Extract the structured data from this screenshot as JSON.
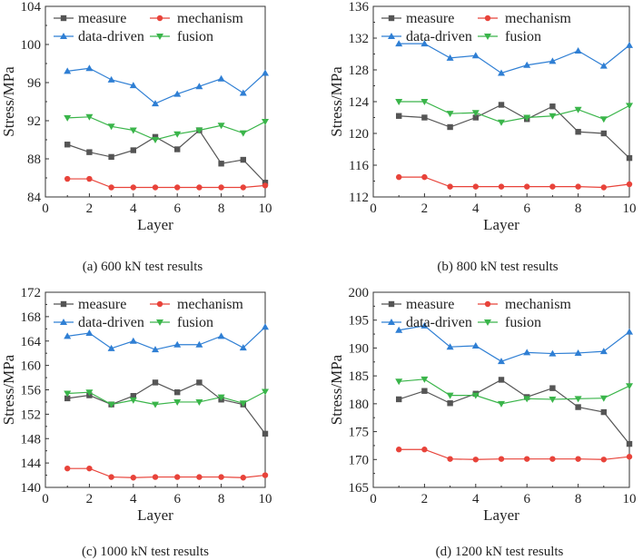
{
  "chart_data": [
    {
      "type": "line",
      "caption": "(a) 600 kN test results",
      "xlabel": "Layer",
      "ylabel": "Stress/MPa",
      "xlim": [
        0,
        10
      ],
      "ylim": [
        84,
        104
      ],
      "xticks": [
        0,
        2,
        4,
        6,
        8,
        10
      ],
      "yticks": [
        84,
        88,
        92,
        96,
        100,
        104
      ],
      "x": [
        1,
        2,
        3,
        4,
        5,
        6,
        7,
        8,
        9,
        10
      ],
      "series": [
        {
          "name": "measure",
          "color": "#555555",
          "marker": "square",
          "values": [
            89.5,
            88.7,
            88.2,
            88.9,
            90.3,
            89.0,
            91.0,
            87.5,
            87.9,
            85.5
          ]
        },
        {
          "name": "mechanism",
          "color": "#e8433a",
          "marker": "circle",
          "values": [
            85.9,
            85.9,
            85.0,
            85.0,
            85.0,
            85.0,
            85.0,
            85.0,
            85.0,
            85.2
          ]
        },
        {
          "name": "data-driven",
          "color": "#2f7fd4",
          "marker": "triangle-up",
          "values": [
            97.2,
            97.5,
            96.3,
            95.7,
            93.8,
            94.8,
            95.6,
            96.4,
            94.9,
            97.0
          ]
        },
        {
          "name": "fusion",
          "color": "#3ab54a",
          "marker": "triangle-down",
          "values": [
            92.3,
            92.4,
            91.4,
            91.0,
            90.0,
            90.6,
            91.0,
            91.5,
            90.7,
            91.9
          ]
        }
      ]
    },
    {
      "type": "line",
      "caption": "(b) 800 kN test results",
      "xlabel": "Layer",
      "ylabel": "Stress/MPa",
      "xlim": [
        0,
        10
      ],
      "ylim": [
        112,
        136
      ],
      "xticks": [
        0,
        2,
        4,
        6,
        8,
        10
      ],
      "yticks": [
        112,
        116,
        120,
        124,
        128,
        132,
        136
      ],
      "x": [
        1,
        2,
        3,
        4,
        5,
        6,
        7,
        8,
        9,
        10
      ],
      "series": [
        {
          "name": "measure",
          "color": "#555555",
          "marker": "square",
          "values": [
            122.2,
            122.0,
            120.8,
            122.0,
            123.6,
            121.8,
            123.4,
            120.2,
            120.0,
            116.9
          ]
        },
        {
          "name": "mechanism",
          "color": "#e8433a",
          "marker": "circle",
          "values": [
            114.5,
            114.5,
            113.3,
            113.3,
            113.3,
            113.3,
            113.3,
            113.3,
            113.2,
            113.6
          ]
        },
        {
          "name": "data-driven",
          "color": "#2f7fd4",
          "marker": "triangle-up",
          "values": [
            131.3,
            131.3,
            129.5,
            129.8,
            127.6,
            128.6,
            129.1,
            130.4,
            128.5,
            131.1
          ]
        },
        {
          "name": "fusion",
          "color": "#3ab54a",
          "marker": "triangle-down",
          "values": [
            124.0,
            124.0,
            122.5,
            122.6,
            121.4,
            122.0,
            122.2,
            123.0,
            121.8,
            123.5
          ]
        }
      ]
    },
    {
      "type": "line",
      "caption": "(c) 1000 kN test results",
      "xlabel": "Layer",
      "ylabel": "Stress/MPa",
      "xlim": [
        0,
        10
      ],
      "ylim": [
        140,
        172
      ],
      "xticks": [
        0,
        2,
        4,
        6,
        8,
        10
      ],
      "yticks": [
        140,
        144,
        148,
        152,
        156,
        160,
        164,
        168,
        172
      ],
      "x": [
        1,
        2,
        3,
        4,
        5,
        6,
        7,
        8,
        9,
        10
      ],
      "series": [
        {
          "name": "measure",
          "color": "#555555",
          "marker": "square",
          "values": [
            154.6,
            155.1,
            153.6,
            155.0,
            157.2,
            155.6,
            157.2,
            154.4,
            153.6,
            148.8
          ]
        },
        {
          "name": "mechanism",
          "color": "#e8433a",
          "marker": "circle",
          "values": [
            143.1,
            143.1,
            141.7,
            141.6,
            141.7,
            141.7,
            141.7,
            141.7,
            141.6,
            142.0
          ]
        },
        {
          "name": "data-driven",
          "color": "#2f7fd4",
          "marker": "triangle-up",
          "values": [
            164.8,
            165.3,
            162.8,
            164.0,
            162.6,
            163.4,
            163.4,
            164.8,
            162.9,
            166.3
          ]
        },
        {
          "name": "fusion",
          "color": "#3ab54a",
          "marker": "triangle-down",
          "values": [
            155.4,
            155.6,
            153.6,
            154.3,
            153.6,
            154.0,
            154.0,
            154.8,
            153.8,
            155.7
          ]
        }
      ]
    },
    {
      "type": "line",
      "caption": "(d) 1200 kN test results",
      "xlabel": "Layer",
      "ylabel": "Stress/MPa",
      "xlim": [
        0,
        10
      ],
      "ylim": [
        165,
        200
      ],
      "xticks": [
        0,
        2,
        4,
        6,
        8,
        10
      ],
      "yticks": [
        165,
        170,
        175,
        180,
        185,
        190,
        195,
        200
      ],
      "x": [
        1,
        2,
        3,
        4,
        5,
        6,
        7,
        8,
        9,
        10
      ],
      "series": [
        {
          "name": "measure",
          "color": "#555555",
          "marker": "square",
          "values": [
            180.8,
            182.3,
            180.1,
            181.8,
            184.3,
            181.2,
            182.8,
            179.4,
            178.5,
            172.8
          ]
        },
        {
          "name": "mechanism",
          "color": "#e8433a",
          "marker": "circle",
          "values": [
            171.8,
            171.8,
            170.1,
            170.0,
            170.1,
            170.1,
            170.1,
            170.1,
            170.0,
            170.5
          ]
        },
        {
          "name": "data-driven",
          "color": "#2f7fd4",
          "marker": "triangle-up",
          "values": [
            193.2,
            194.0,
            190.2,
            190.4,
            187.6,
            189.2,
            189.0,
            189.1,
            189.4,
            192.9
          ]
        },
        {
          "name": "fusion",
          "color": "#3ab54a",
          "marker": "triangle-down",
          "values": [
            184.0,
            184.4,
            181.5,
            181.5,
            180.0,
            180.9,
            180.8,
            180.9,
            181.0,
            183.2
          ]
        }
      ]
    }
  ]
}
